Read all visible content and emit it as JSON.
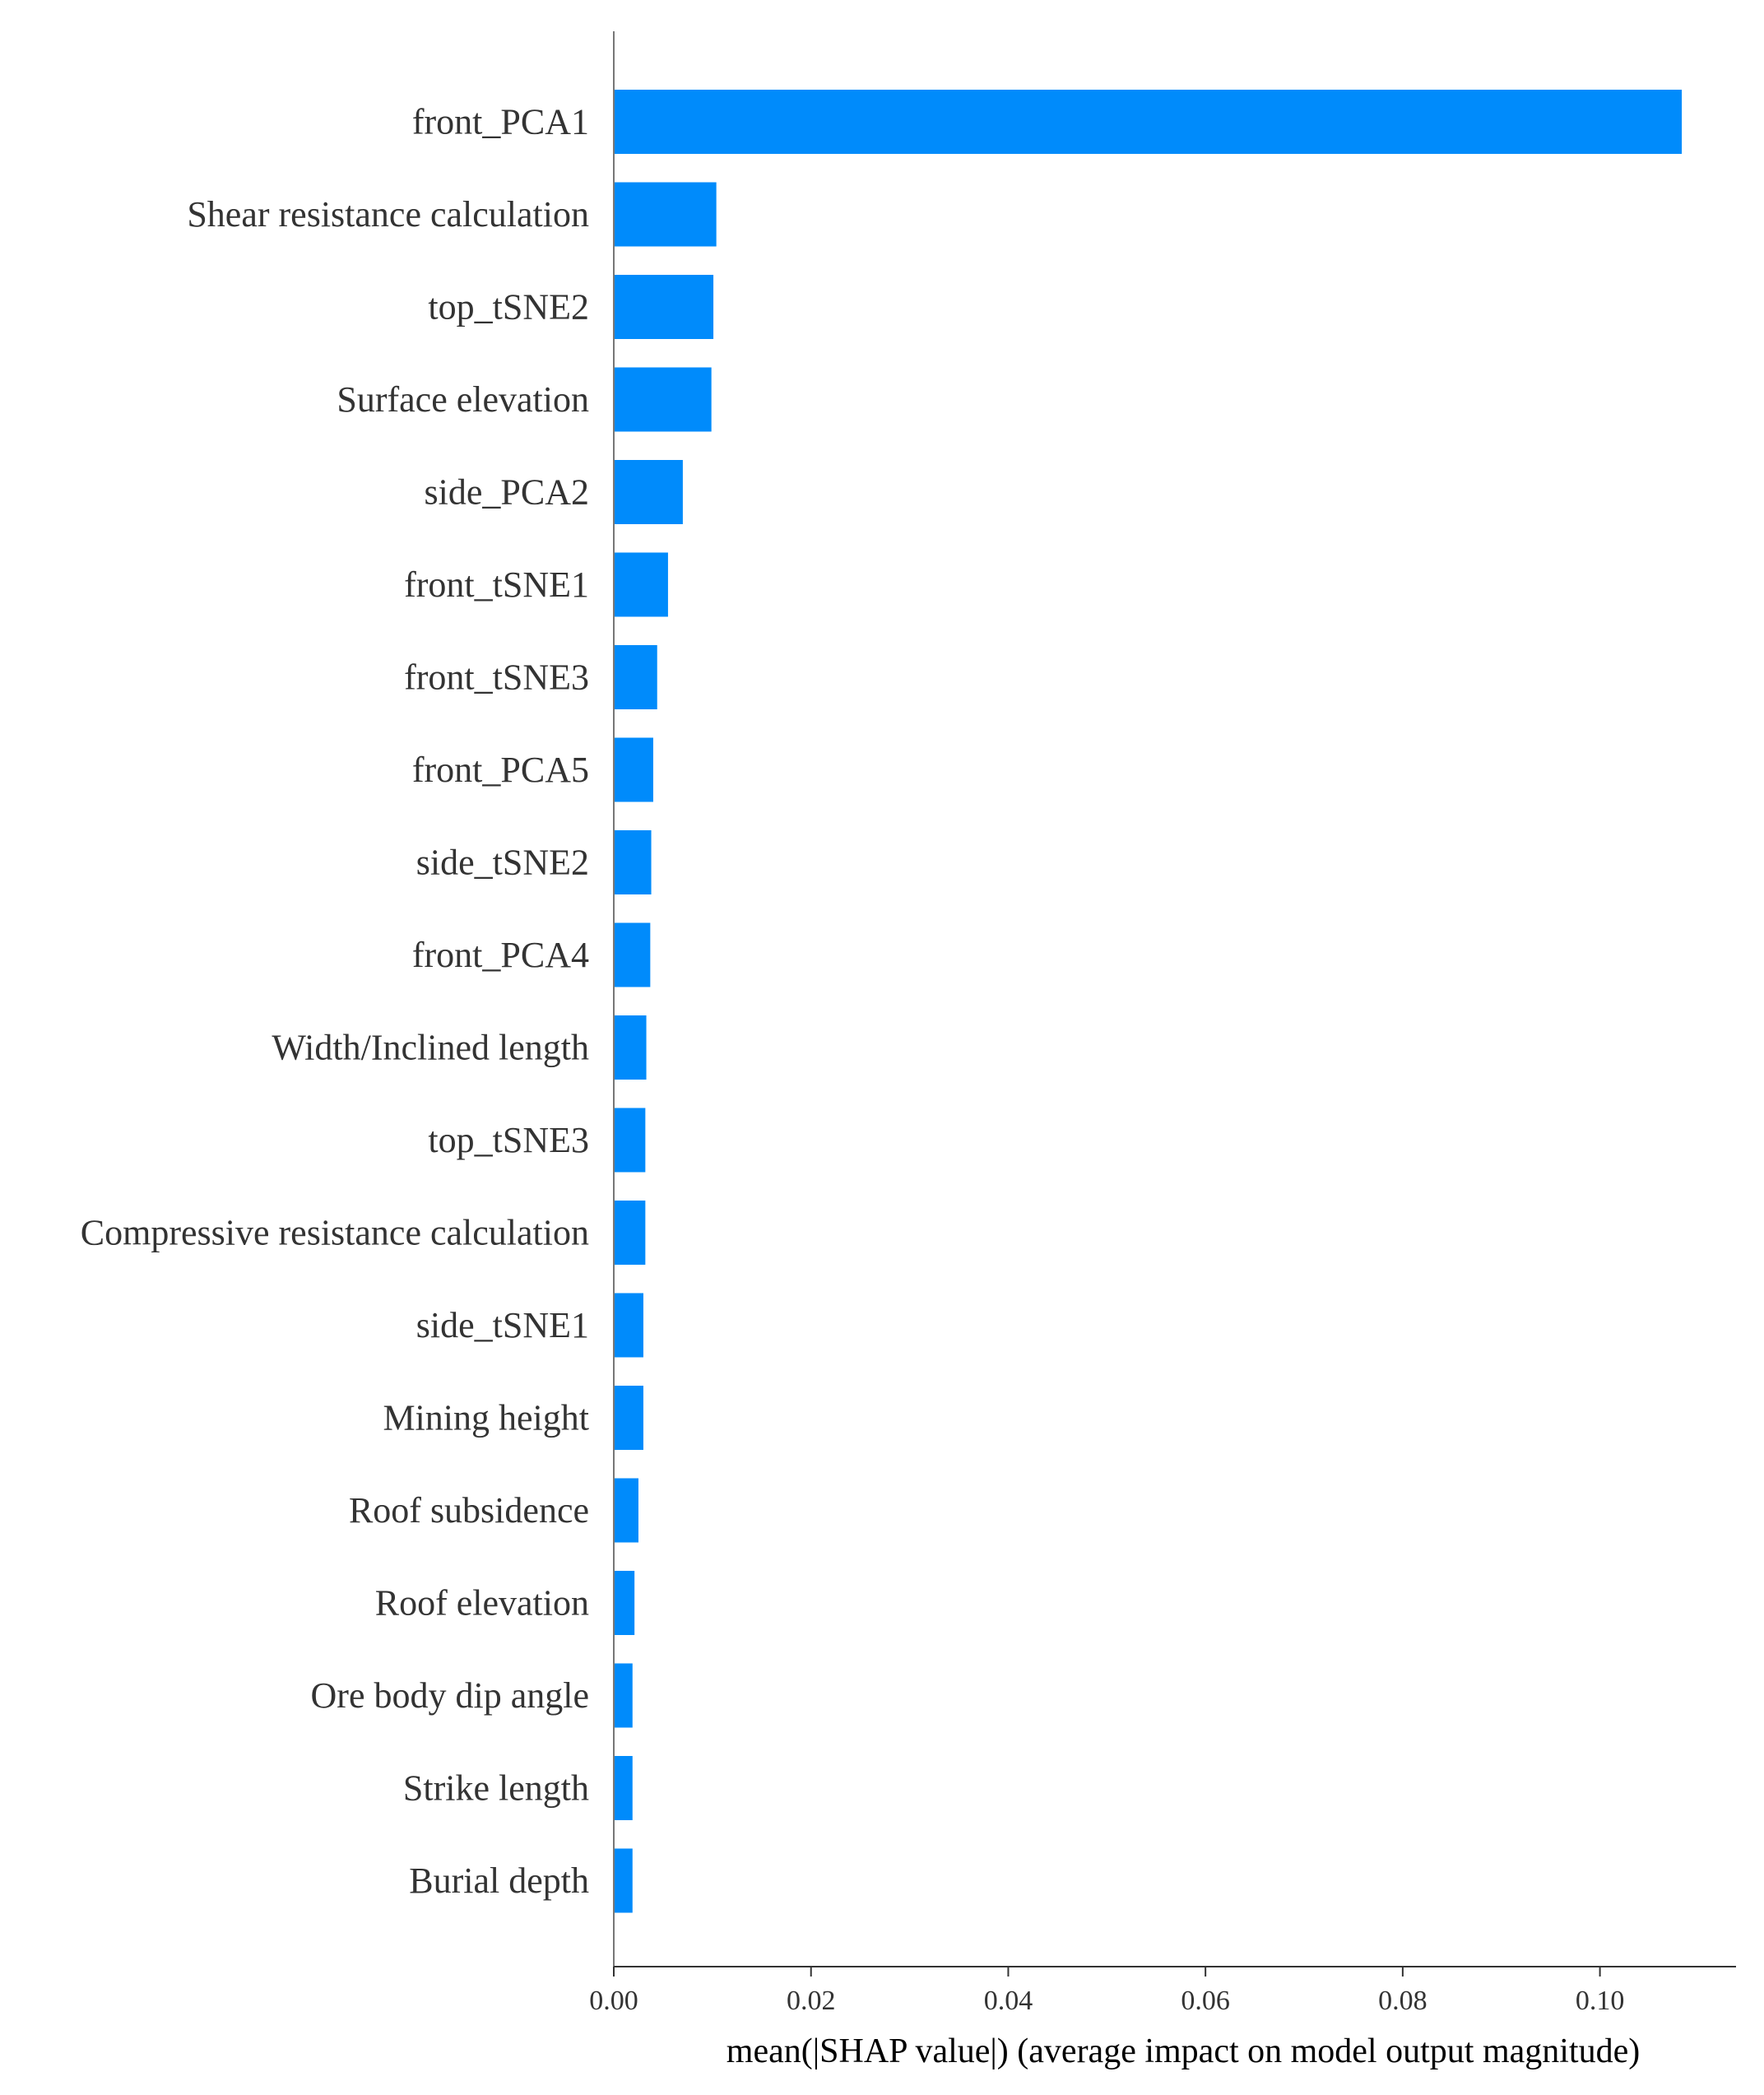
{
  "chart_data": {
    "type": "bar",
    "orientation": "horizontal",
    "categories": [
      "front_PCA1",
      "Shear resistance calculation",
      "top_tSNE2",
      "Surface elevation",
      "side_PCA2",
      "front_tSNE1",
      "front_tSNE3",
      "front_PCA5",
      "side_tSNE2",
      "front_PCA4",
      "Width/Inclined length",
      "top_tSNE3",
      "Compressive resistance calculation",
      "side_tSNE1",
      "Mining height",
      "Roof subsidence",
      "Roof elevation",
      "Ore body dip angle",
      "Strike length",
      "Burial depth"
    ],
    "values": [
      0.1083,
      0.0104,
      0.0101,
      0.0099,
      0.007,
      0.0055,
      0.0044,
      0.004,
      0.0038,
      0.0037,
      0.0033,
      0.0032,
      0.0032,
      0.003,
      0.003,
      0.0025,
      0.0021,
      0.0019,
      0.0019,
      0.0019
    ],
    "xlabel": "mean(|SHAP value|) (average impact on model output magnitude)",
    "xlim": [
      0,
      0.1138
    ],
    "xticks": [
      0.0,
      0.02,
      0.04,
      0.06,
      0.08,
      0.1
    ],
    "xtick_labels": [
      "0.00",
      "0.02",
      "0.04",
      "0.06",
      "0.08",
      "0.10"
    ],
    "bar_color": "#008bfb",
    "grid": false,
    "legend": "none"
  }
}
